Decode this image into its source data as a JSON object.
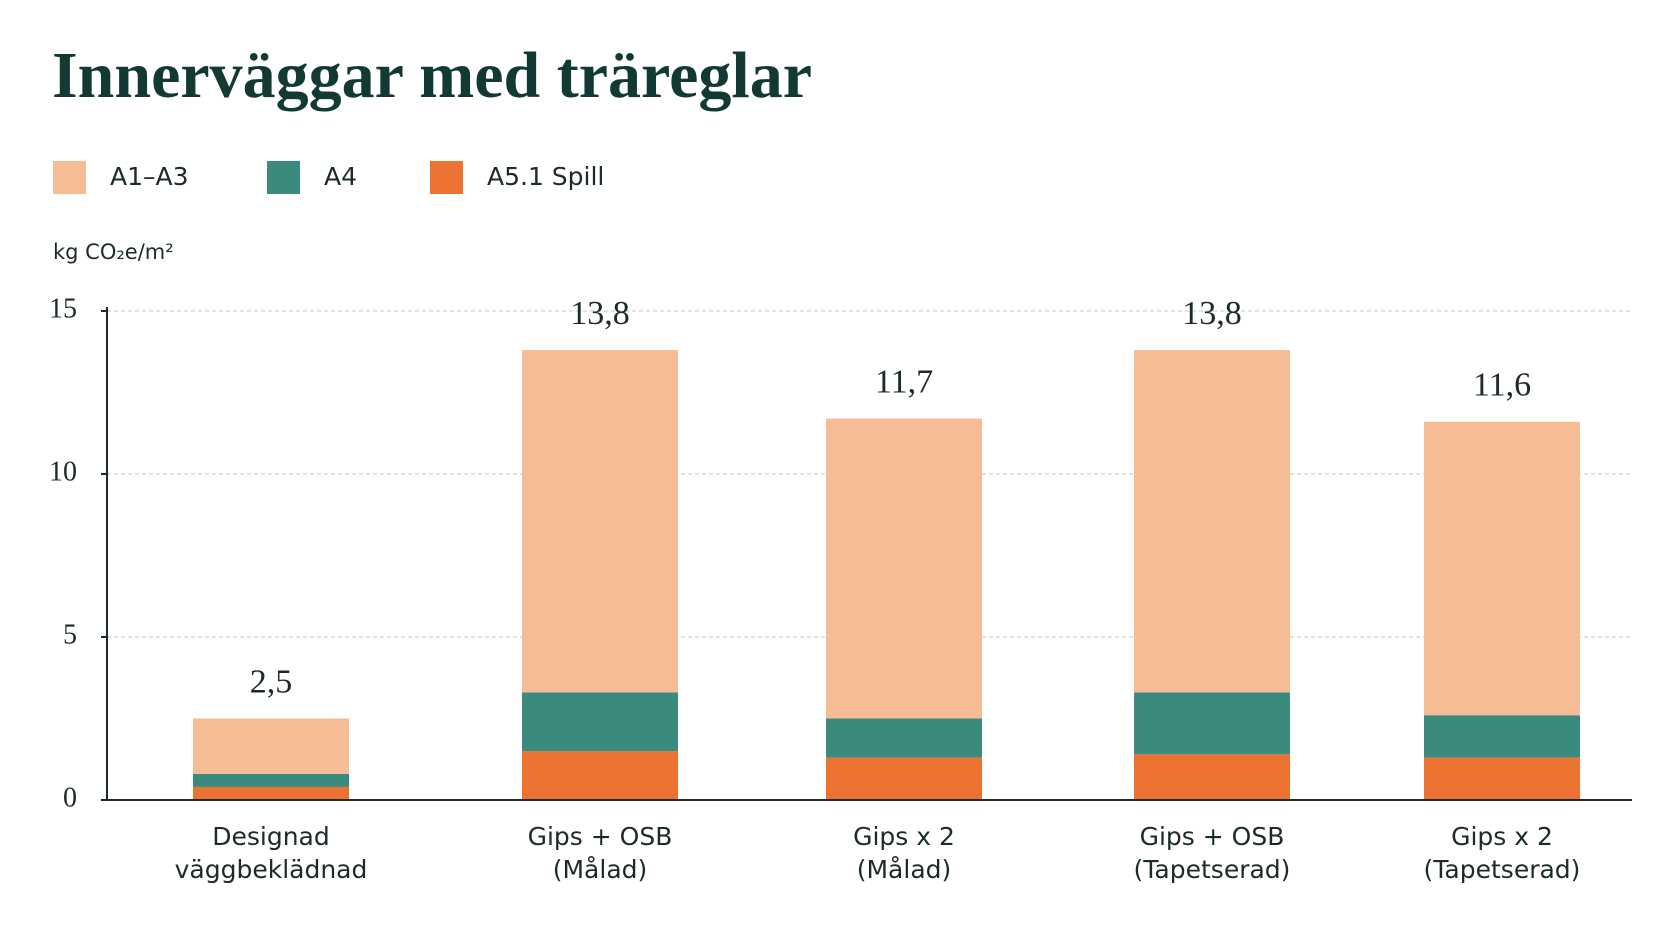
{
  "chart_data": {
    "type": "stacked_bar",
    "title": "Innerväggar med träreglar",
    "y_label": "kg CO₂e/m²",
    "categories": [
      [
        "Designad",
        "väggbeklädnad"
      ],
      [
        "Gips + OSB",
        "(Målad)"
      ],
      [
        "Gips x 2",
        "(Målad)"
      ],
      [
        "Gips + OSB",
        "(Tapetserad)"
      ],
      [
        "Gips x 2",
        "(Tapetserad)"
      ]
    ],
    "series": [
      {
        "name": "A1–A3",
        "color": "#f5bc96",
        "values": [
          1.7,
          10.5,
          9.2,
          10.5,
          9.0
        ]
      },
      {
        "name": "A4",
        "color": "#3a8a7e",
        "values": [
          0.4,
          1.8,
          1.2,
          1.9,
          1.3
        ]
      },
      {
        "name": "A5.1 Spill",
        "color": "#ec7232",
        "values": [
          0.4,
          1.5,
          1.3,
          1.4,
          1.3
        ]
      }
    ],
    "totals": [
      {
        "value": 2.5,
        "label": "2,5"
      },
      {
        "value": 13.8,
        "label": "13,8"
      },
      {
        "value": 11.7,
        "label": "11,7"
      },
      {
        "value": 13.8,
        "label": "13,8"
      },
      {
        "value": 11.6,
        "label": "11,6"
      }
    ],
    "ylim": [
      0,
      15
    ],
    "yticks": [
      0,
      5,
      10,
      15
    ],
    "grid": true
  }
}
